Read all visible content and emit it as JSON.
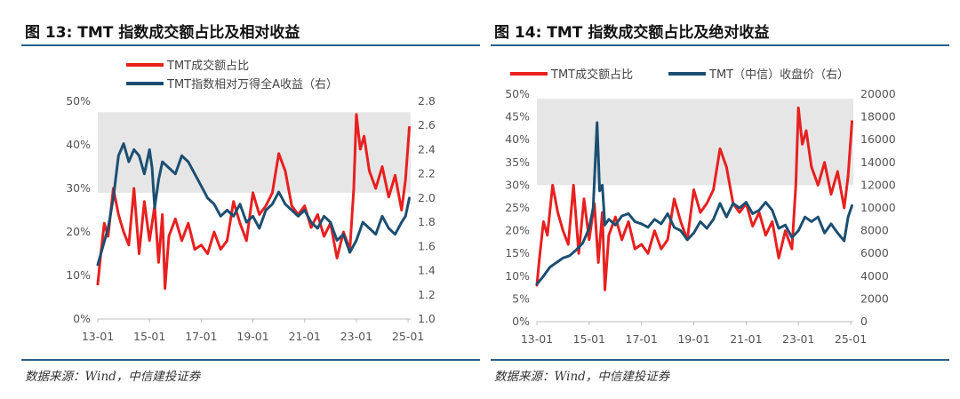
{
  "charts": [
    {
      "figure_title": "图 13: TMT 指数成交额占比及相对收益",
      "source": "数据来源：Wind，中信建投证券",
      "chart_data": {
        "type": "line",
        "title": "图 13: TMT 指数成交额占比及相对收益",
        "x_ticks": [
          "13-01",
          "15-01",
          "17-01",
          "19-01",
          "21-01",
          "23-01",
          "25-01"
        ],
        "xlim": [
          2013.0,
          2025.1
        ],
        "y_left": {
          "ticks": [
            "0%",
            "10%",
            "20%",
            "30%",
            "40%",
            "50%"
          ],
          "ylim": [
            0,
            50
          ]
        },
        "y_right": {
          "ticks": [
            "1.0",
            "1.2",
            "1.4",
            "1.6",
            "1.8",
            "2.0",
            "2.2",
            "2.4",
            "2.6",
            "2.8"
          ],
          "ylim": [
            1.0,
            2.8
          ]
        },
        "shaded_band": {
          "y_from": 29,
          "y_to": 47.5,
          "axis": "left",
          "color": "#e6e6e6"
        },
        "series": [
          {
            "name": "TMT成交额占比",
            "axis": "left",
            "color": "#e8201f",
            "x": [
              2013.0,
              2013.1,
              2013.25,
              2013.4,
              2013.6,
              2013.8,
              2014.0,
              2014.2,
              2014.4,
              2014.6,
              2014.8,
              2015.0,
              2015.2,
              2015.35,
              2015.5,
              2015.6,
              2015.75,
              2016.0,
              2016.25,
              2016.5,
              2016.75,
              2017.0,
              2017.25,
              2017.5,
              2017.75,
              2018.0,
              2018.25,
              2018.5,
              2018.75,
              2019.0,
              2019.25,
              2019.5,
              2019.75,
              2020.0,
              2020.25,
              2020.5,
              2020.75,
              2021.0,
              2021.25,
              2021.5,
              2021.75,
              2022.0,
              2022.25,
              2022.5,
              2022.75,
              2022.9,
              2023.0,
              2023.15,
              2023.3,
              2023.5,
              2023.75,
              2024.0,
              2024.25,
              2024.5,
              2024.75,
              2024.9,
              2025.05
            ],
            "y": [
              8,
              14,
              22,
              19,
              30,
              24,
              20,
              17,
              30,
              15,
              27,
              18,
              26,
              13,
              24,
              7,
              19,
              23,
              18,
              22,
              16,
              17,
              15,
              20,
              16,
              18,
              27,
              22,
              18,
              29,
              24,
              26,
              29,
              38,
              34,
              26,
              24,
              26,
              21,
              24,
              19,
              22,
              14,
              20,
              16,
              30,
              47,
              39,
              42,
              34,
              30,
              35,
              28,
              33,
              25,
              32,
              44
            ]
          },
          {
            "name": "TMT指数相对万得全A收益（右）",
            "axis": "right",
            "color": "#1b4f72",
            "x": [
              2013.0,
              2013.2,
              2013.4,
              2013.6,
              2013.8,
              2014.0,
              2014.2,
              2014.4,
              2014.6,
              2014.8,
              2015.0,
              2015.1,
              2015.2,
              2015.35,
              2015.5,
              2015.75,
              2016.0,
              2016.25,
              2016.5,
              2016.75,
              2017.0,
              2017.25,
              2017.5,
              2017.75,
              2018.0,
              2018.25,
              2018.5,
              2018.75,
              2019.0,
              2019.25,
              2019.5,
              2019.75,
              2020.0,
              2020.25,
              2020.5,
              2020.75,
              2021.0,
              2021.25,
              2021.5,
              2021.75,
              2022.0,
              2022.25,
              2022.5,
              2022.75,
              2023.0,
              2023.25,
              2023.5,
              2023.75,
              2024.0,
              2024.25,
              2024.5,
              2024.75,
              2024.9,
              2025.05
            ],
            "y": [
              1.45,
              1.6,
              1.75,
              2.0,
              2.35,
              2.45,
              2.3,
              2.4,
              2.35,
              2.2,
              2.4,
              2.25,
              1.92,
              2.15,
              2.3,
              2.25,
              2.2,
              2.35,
              2.3,
              2.2,
              2.1,
              2.0,
              1.95,
              1.85,
              1.9,
              1.85,
              1.95,
              1.8,
              1.85,
              1.75,
              1.9,
              1.95,
              2.05,
              1.95,
              1.9,
              1.85,
              1.9,
              1.8,
              1.75,
              1.85,
              1.8,
              1.65,
              1.7,
              1.55,
              1.65,
              1.8,
              1.75,
              1.7,
              1.85,
              1.75,
              1.7,
              1.8,
              1.85,
              2.0
            ]
          }
        ],
        "legend": "top"
      }
    },
    {
      "figure_title": "图 14: TMT 指数成交额占比及绝对收益",
      "source": "数据来源：Wind，中信建投证券",
      "chart_data": {
        "type": "line",
        "title": "图 14: TMT 指数成交额占比及绝对收益",
        "x_ticks": [
          "13-01",
          "15-01",
          "17-01",
          "19-01",
          "21-01",
          "23-01",
          "25-01"
        ],
        "xlim": [
          2013.0,
          2025.1
        ],
        "y_left": {
          "ticks": [
            "0%",
            "5%",
            "10%",
            "15%",
            "20%",
            "25%",
            "30%",
            "35%",
            "40%",
            "45%",
            "50%"
          ],
          "ylim": [
            0,
            50
          ]
        },
        "y_right": {
          "ticks": [
            "0",
            "2000",
            "4000",
            "6000",
            "8000",
            "10000",
            "12000",
            "14000",
            "16000",
            "18000",
            "20000"
          ],
          "ylim": [
            0,
            20000
          ]
        },
        "shaded_band": {
          "y_from": 30,
          "y_to": 49,
          "axis": "left",
          "color": "#e6e6e6"
        },
        "series": [
          {
            "name": "TMT成交额占比",
            "axis": "left",
            "color": "#e8201f",
            "x": [
              2013.0,
              2013.1,
              2013.25,
              2013.4,
              2013.6,
              2013.8,
              2014.0,
              2014.2,
              2014.4,
              2014.6,
              2014.8,
              2015.0,
              2015.2,
              2015.35,
              2015.5,
              2015.6,
              2015.75,
              2016.0,
              2016.25,
              2016.5,
              2016.75,
              2017.0,
              2017.25,
              2017.5,
              2017.75,
              2018.0,
              2018.25,
              2018.5,
              2018.75,
              2019.0,
              2019.25,
              2019.5,
              2019.75,
              2020.0,
              2020.25,
              2020.5,
              2020.75,
              2021.0,
              2021.25,
              2021.5,
              2021.75,
              2022.0,
              2022.25,
              2022.5,
              2022.75,
              2022.9,
              2023.0,
              2023.15,
              2023.3,
              2023.5,
              2023.75,
              2024.0,
              2024.25,
              2024.5,
              2024.75,
              2024.9,
              2025.05
            ],
            "y": [
              8,
              14,
              22,
              19,
              30,
              24,
              20,
              17,
              30,
              15,
              27,
              18,
              26,
              13,
              24,
              7,
              19,
              23,
              18,
              22,
              16,
              17,
              15,
              20,
              16,
              18,
              27,
              22,
              18,
              29,
              24,
              26,
              29,
              38,
              34,
              26,
              24,
              26,
              21,
              24,
              19,
              22,
              14,
              20,
              16,
              30,
              47,
              39,
              42,
              34,
              30,
              35,
              28,
              33,
              25,
              32,
              44
            ]
          },
          {
            "name": "TMT（中信）收盘价（右）",
            "axis": "right",
            "color": "#1b4f72",
            "x": [
              2013.0,
              2013.25,
              2013.5,
              2013.75,
              2014.0,
              2014.25,
              2014.5,
              2014.75,
              2015.0,
              2015.15,
              2015.3,
              2015.4,
              2015.5,
              2015.6,
              2015.75,
              2016.0,
              2016.25,
              2016.5,
              2016.75,
              2017.0,
              2017.25,
              2017.5,
              2017.75,
              2018.0,
              2018.25,
              2018.5,
              2018.75,
              2019.0,
              2019.25,
              2019.5,
              2019.75,
              2020.0,
              2020.25,
              2020.5,
              2020.75,
              2021.0,
              2021.25,
              2021.5,
              2021.75,
              2022.0,
              2022.25,
              2022.5,
              2022.75,
              2023.0,
              2023.25,
              2023.5,
              2023.75,
              2024.0,
              2024.25,
              2024.5,
              2024.75,
              2024.9,
              2025.05
            ],
            "y": [
              3300,
              4000,
              4800,
              5200,
              5600,
              5800,
              6300,
              6900,
              8200,
              10000,
              17500,
              11500,
              12000,
              8500,
              9000,
              8500,
              9300,
              9500,
              8800,
              8600,
              8300,
              9000,
              8600,
              9500,
              8300,
              8000,
              7200,
              7800,
              8800,
              8200,
              9000,
              10400,
              9200,
              10400,
              10000,
              10500,
              9500,
              9800,
              10500,
              9800,
              8200,
              8500,
              7400,
              8000,
              9200,
              8800,
              9200,
              7800,
              8600,
              7800,
              7100,
              9200,
              10200
            ]
          }
        ],
        "legend": "top"
      }
    }
  ]
}
